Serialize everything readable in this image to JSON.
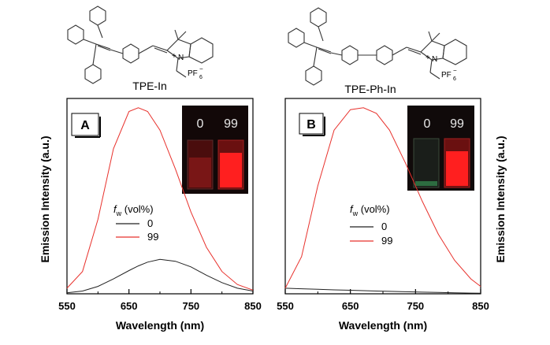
{
  "structures": [
    {
      "name": "TPE-In",
      "atoms": [
        "N",
        "+",
        "PF",
        "6",
        "−"
      ]
    },
    {
      "name": "TPE-Ph-In",
      "atoms": [
        "N",
        "+",
        "PF",
        "6",
        "−"
      ]
    }
  ],
  "y_axis_title_left": "Emission Intensity (a.u.)",
  "y_axis_title_right": "Emission Intensity (a.u.)",
  "colors": {
    "fw_0": "#222222",
    "fw_99": "#e8312c",
    "inset_bg": "#120808",
    "inset_glow": "#ff1a1a"
  },
  "chart_data": [
    {
      "type": "line",
      "panel_label": "A",
      "xlabel": "Wavelength (nm)",
      "ylabel": "Emission Intensity (a.u.)",
      "xlim": [
        550,
        850
      ],
      "xticks": [
        "550",
        "650",
        "750",
        "850"
      ],
      "yticks_shown": false,
      "legend_title_main": "f",
      "legend_title_sub": "w",
      "legend_title_rest": " (vol%)",
      "x": [
        550,
        575,
        600,
        625,
        650,
        665,
        680,
        700,
        725,
        750,
        775,
        800,
        825,
        850
      ],
      "series": [
        {
          "name": "0",
          "values": [
            0.5,
            1.5,
            4,
            8,
            12.5,
            15,
            17,
            18.5,
            17.5,
            14.5,
            10,
            6,
            3,
            1.5
          ]
        },
        {
          "name": "99",
          "values": [
            3,
            12,
            40,
            78,
            98,
            100,
            98,
            88,
            67,
            44,
            25,
            12,
            5,
            2
          ]
        }
      ],
      "inset": {
        "labels": [
          "0",
          "99"
        ],
        "vial_glow": [
          "dim red",
          "bright red"
        ]
      }
    },
    {
      "type": "line",
      "panel_label": "B",
      "xlabel": "Wavelength (nm)",
      "ylabel": "Emission Intensity (a.u.)",
      "xlim": [
        550,
        850
      ],
      "xticks": [
        "550",
        "650",
        "750",
        "850"
      ],
      "yticks_shown": false,
      "legend_title_main": "f",
      "legend_title_sub": "w",
      "legend_title_rest": " (vol%)",
      "x": [
        550,
        575,
        600,
        625,
        650,
        670,
        690,
        710,
        735,
        760,
        785,
        810,
        835,
        850
      ],
      "series": [
        {
          "name": "0",
          "values": [
            3,
            2.7,
            2.4,
            2.1,
            1.9,
            1.7,
            1.5,
            1.3,
            1.1,
            0.9,
            0.7,
            0.5,
            0.4,
            0.3
          ]
        },
        {
          "name": "99",
          "values": [
            3,
            20,
            58,
            88,
            99,
            100,
            97,
            88,
            70,
            50,
            32,
            18,
            8,
            4
          ]
        }
      ],
      "inset": {
        "labels": [
          "0",
          "99"
        ],
        "vial_glow": [
          "faint green",
          "bright red"
        ]
      }
    }
  ]
}
